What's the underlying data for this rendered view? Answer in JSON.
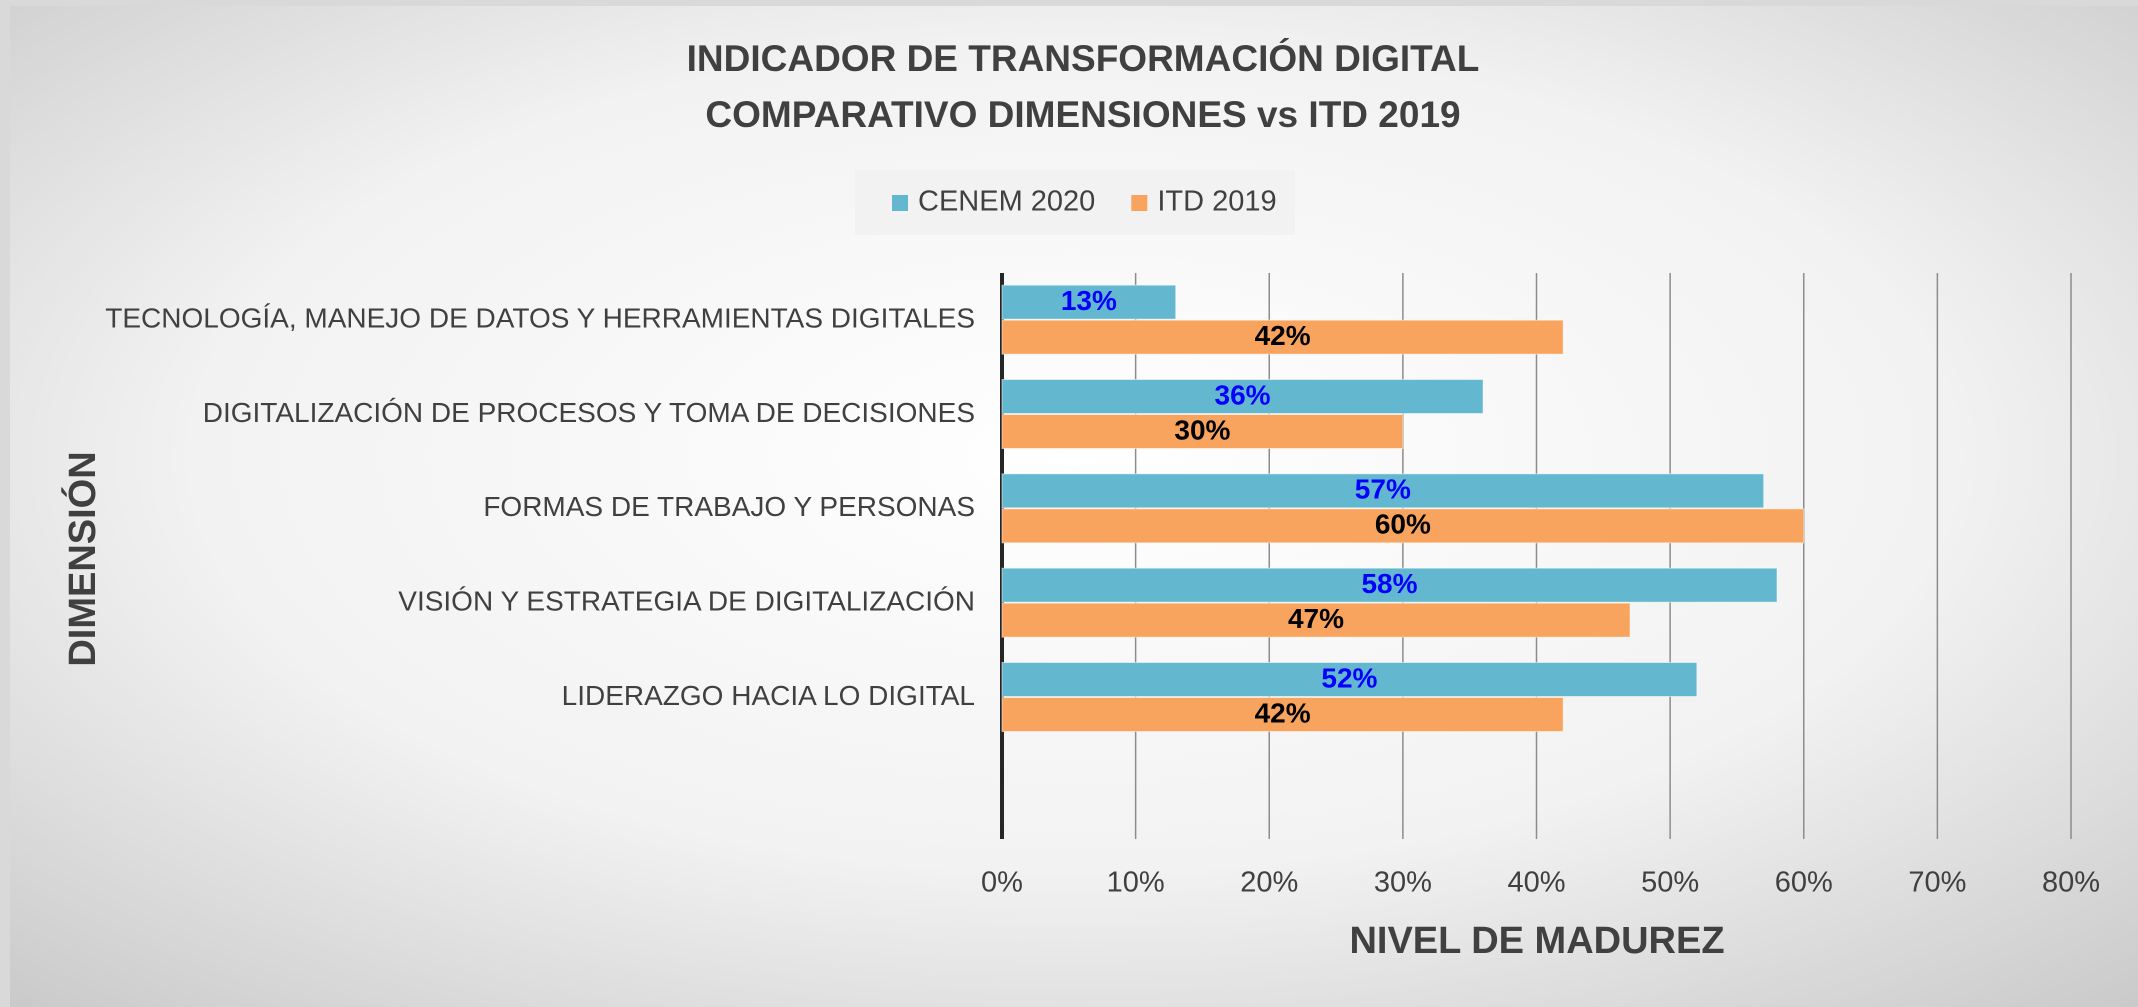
{
  "chart_data": {
    "type": "bar",
    "orientation": "horizontal",
    "title": [
      "INDICADOR DE TRANSFORMACIÓN DIGITAL",
      "COMPARATIVO DIMENSIONES vs ITD 2019"
    ],
    "x_label": "NIVEL DE MADUREZ",
    "y_label": "DIMENSIÓN",
    "categories": [
      "TECNOLOGÍA, MANEJO DE DATOS Y HERRAMIENTAS DIGITALES",
      "DIGITALIZACIÓN DE PROCESOS Y TOMA DE DECISIONES",
      "FORMAS DE TRABAJO Y PERSONAS",
      "VISIÓN Y ESTRATEGIA DE DIGITALIZACIÓN",
      "LIDERAZGO HACIA LO DIGITAL",
      null
    ],
    "series": [
      {
        "name": "CENEM 2020",
        "color": "#63b8cf",
        "label_color": "#0000ff",
        "values": [
          13,
          36,
          57,
          58,
          52,
          null
        ],
        "value_labels": [
          "13%",
          "36%",
          "57%",
          "58%",
          "52%",
          null
        ]
      },
      {
        "name": "ITD 2019",
        "color": "#f8a45e",
        "label_color": "#000000",
        "values": [
          42,
          30,
          60,
          47,
          42,
          null
        ],
        "value_labels": [
          "42%",
          "30%",
          "60%",
          "47%",
          "42%",
          null
        ]
      }
    ],
    "xlim": [
      0,
      80
    ],
    "xticks": [
      {
        "value": 0,
        "label": "0%"
      },
      {
        "value": 10,
        "label": "10%"
      },
      {
        "value": 20,
        "label": "20%"
      },
      {
        "value": 30,
        "label": "30%"
      },
      {
        "value": 40,
        "label": "40%"
      },
      {
        "value": 50,
        "label": "50%"
      },
      {
        "value": 60,
        "label": "60%"
      },
      {
        "value": 70,
        "label": "70%"
      },
      {
        "value": 80,
        "label": "80%"
      }
    ],
    "grid": true,
    "legend": "top"
  }
}
